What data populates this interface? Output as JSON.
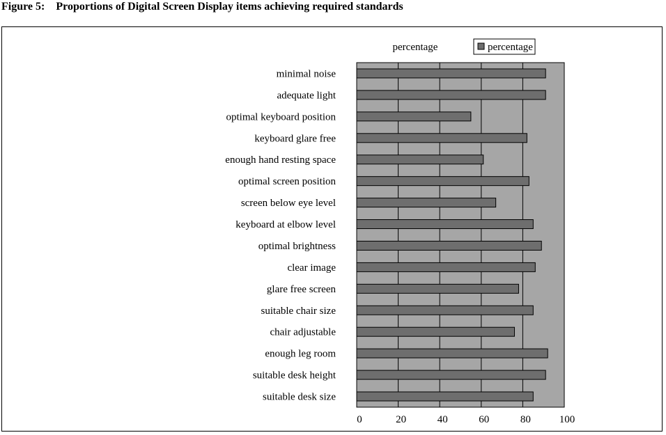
{
  "figure": {
    "number": "Figure 5:",
    "caption": "Proportions of Digital Screen Display items achieving required standards"
  },
  "chart_data": {
    "type": "bar",
    "orientation": "horizontal",
    "title": "percentage",
    "categories": [
      "minimal noise",
      "adequate light",
      "optimal keyboard position",
      "keyboard glare free",
      "enough hand resting space",
      "optimal screen position",
      "screen below eye level",
      "keyboard at elbow level",
      "optimal brightness",
      "clear image",
      "glare free screen",
      "suitable chair size",
      "chair adjustable",
      "enough leg room",
      "suitable desk height",
      "suitable desk size"
    ],
    "series": [
      {
        "name": "percentage",
        "color": "#6e6e6e",
        "values": [
          91,
          91,
          55,
          82,
          61,
          83,
          67,
          85,
          89,
          86,
          78,
          85,
          76,
          92,
          91,
          85
        ]
      }
    ],
    "xlim": [
      0,
      100
    ],
    "xticks": [
      "0",
      "20",
      "40",
      "60",
      "80",
      "100"
    ],
    "grid": true,
    "legend": "top-right",
    "plot_background": "#a6a6a6"
  }
}
